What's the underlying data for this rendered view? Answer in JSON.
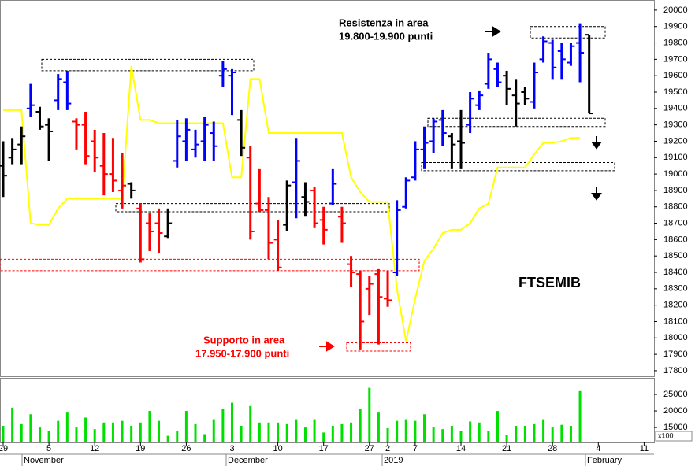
{
  "chart_data": [
    {
      "type": "ohlc",
      "title": "FTSEMIB",
      "annotations": {
        "resistance_1": "Resistenza in area",
        "resistance_2": "19.800-19.900 punti",
        "support_1": "Supporto in area",
        "support_2": "17.950-17.900 punti"
      },
      "categories": [
        "29",
        null,
        null,
        null,
        null,
        "5",
        null,
        null,
        null,
        null,
        "12",
        null,
        null,
        null,
        null,
        "19",
        null,
        null,
        null,
        null,
        "26",
        null,
        null,
        null,
        null,
        "3",
        null,
        null,
        null,
        null,
        "10",
        null,
        null,
        null,
        null,
        "17",
        null,
        null,
        null,
        null,
        "27",
        null,
        "2",
        null,
        null,
        "7",
        null,
        null,
        null,
        null,
        "14",
        null,
        null,
        null,
        null,
        "21",
        null,
        null,
        null,
        null,
        "28",
        null,
        null,
        null,
        null,
        "4",
        null,
        null,
        null,
        null,
        "11",
        null
      ],
      "month_labels": [
        "November",
        "December",
        "2019",
        "February"
      ],
      "high": [
        19200,
        19220,
        19290,
        19550,
        19410,
        19340,
        19610,
        19630,
        19340,
        19380,
        19270,
        19250,
        19220,
        19130,
        18950,
        18820,
        18760,
        18790,
        18790,
        19330,
        19340,
        19270,
        19350,
        19320,
        19690,
        19640,
        19390,
        19170,
        19030,
        18860,
        18720,
        18960,
        19220,
        18950,
        18920,
        18800,
        19030,
        18800,
        18500,
        18410,
        18380,
        18420,
        18410,
        18840,
        18980,
        19200,
        19290,
        19340,
        19390,
        19250,
        19390,
        19500,
        19510,
        19740,
        19680,
        19630,
        19580,
        19530,
        19680,
        19840,
        19820,
        19800,
        19800,
        19920,
        19850,
        null,
        null,
        null,
        null,
        null,
        null,
        null
      ],
      "low": [
        18860,
        19060,
        19060,
        19350,
        19270,
        19080,
        19390,
        19390,
        19150,
        19060,
        19010,
        18870,
        18890,
        18790,
        18850,
        18460,
        18530,
        18520,
        18610,
        19040,
        19080,
        19100,
        19080,
        19080,
        19530,
        19360,
        19110,
        18600,
        18770,
        18480,
        18410,
        18650,
        18730,
        18740,
        18670,
        18570,
        18810,
        18580,
        18310,
        17930,
        18140,
        17960,
        18190,
        18380,
        18790,
        18960,
        19030,
        19130,
        19170,
        19030,
        19030,
        19250,
        19390,
        19520,
        19530,
        19420,
        19290,
        19420,
        19400,
        19680,
        19580,
        19580,
        19660,
        19560,
        19370,
        null,
        null,
        null,
        null,
        null,
        null,
        null
      ],
      "open": [
        19050,
        19100,
        19180,
        19400,
        19380,
        19300,
        19450,
        19560,
        19320,
        19300,
        19200,
        19050,
        19000,
        18900,
        18940,
        18790,
        18700,
        18700,
        18620,
        19080,
        19200,
        19150,
        19200,
        19250,
        19600,
        19600,
        19330,
        19100,
        18820,
        18780,
        18600,
        18690,
        18950,
        18860,
        18900,
        18720,
        18820,
        18740,
        18450,
        18390,
        18300,
        18390,
        18240,
        18400,
        18800,
        18980,
        19150,
        19200,
        19330,
        19230,
        19200,
        19300,
        19420,
        19550,
        19640,
        19600,
        19480,
        19500,
        19440,
        19700,
        19800,
        19750,
        19680,
        19800,
        19850,
        null,
        null,
        null,
        null,
        null,
        null,
        null
      ],
      "close": [
        18990,
        19150,
        19230,
        19420,
        19290,
        19260,
        19580,
        19430,
        19300,
        19110,
        19100,
        19000,
        18960,
        18930,
        18900,
        18480,
        18650,
        18640,
        18700,
        19230,
        19270,
        19180,
        19300,
        19170,
        19640,
        19620,
        19160,
        18650,
        18780,
        18580,
        18430,
        18930,
        19080,
        18830,
        18700,
        18660,
        18940,
        18700,
        18400,
        18100,
        18330,
        18250,
        18230,
        18780,
        18960,
        19150,
        19190,
        19320,
        19250,
        19180,
        19190,
        19460,
        19480,
        19700,
        19560,
        19520,
        19430,
        19460,
        19620,
        19810,
        19650,
        19700,
        19780,
        19740,
        19370,
        null,
        null,
        null,
        null,
        null,
        null,
        null
      ],
      "colors": [
        "#000000",
        "#000000",
        "#000000",
        "#0000ff",
        "#000000",
        "#000000",
        "#0000ff",
        "#0000ff",
        "#ff0000",
        "#ff0000",
        "#ff0000",
        "#ff0000",
        "#ff0000",
        "#ff0000",
        "#000000",
        "#ff0000",
        "#ff0000",
        "#ff0000",
        "#000000",
        "#0000ff",
        "#0000ff",
        "#0000ff",
        "#0000ff",
        "#0000ff",
        "#0000ff",
        "#0000ff",
        "#000000",
        "#ff0000",
        "#ff0000",
        "#ff0000",
        "#ff0000",
        "#000000",
        "#0000ff",
        "#000000",
        "#ff0000",
        "#ff0000",
        "#0000ff",
        "#ff0000",
        "#ff0000",
        "#ff0000",
        "#ff0000",
        "#ff0000",
        "#ff0000",
        "#0000ff",
        "#0000ff",
        "#0000ff",
        "#0000ff",
        "#0000ff",
        "#0000ff",
        "#000000",
        "#000000",
        "#0000ff",
        "#0000ff",
        "#0000ff",
        "#0000ff",
        "#000000",
        "#000000",
        "#000000",
        "#0000ff",
        "#0000ff",
        "#0000ff",
        "#0000ff",
        "#0000ff",
        "#0000ff",
        "#000000",
        null,
        null,
        null,
        null,
        null,
        null,
        null
      ],
      "line": {
        "color": "#ffff00",
        "values": [
          19390,
          19390,
          19390,
          18700,
          18690,
          18690,
          18790,
          18850,
          18850,
          18850,
          18850,
          18850,
          18850,
          18850,
          19660,
          19330,
          19330,
          19310,
          19310,
          19310,
          19310,
          19310,
          19310,
          19310,
          19310,
          18980,
          18980,
          19580,
          19580,
          19250,
          19250,
          19250,
          19250,
          19250,
          19250,
          19250,
          19250,
          19250,
          18980,
          18890,
          18830,
          18830,
          18830,
          18300,
          17980,
          18240,
          18470,
          18545,
          18640,
          18660,
          18660,
          18700,
          18790,
          18820,
          19040,
          19040,
          19040,
          19040,
          19120,
          19190,
          19190,
          19200,
          19220,
          19220,
          null,
          null,
          null,
          null,
          null,
          null,
          null,
          null
        ]
      },
      "zones": [
        {
          "low": 19830,
          "high": 19900,
          "color": "#000000"
        },
        {
          "low": 19630,
          "high": 19700,
          "color": "#000000"
        },
        {
          "low": 18770,
          "high": 18820,
          "color": "#000000"
        },
        {
          "low": 18410,
          "high": 18480,
          "color": "#ff0000"
        },
        {
          "low": 19290,
          "high": 19340,
          "color": "#000000"
        },
        {
          "low": 19020,
          "high": 19070,
          "color": "#000000"
        },
        {
          "low": 17920,
          "high": 17970,
          "color": "#ff0000"
        }
      ],
      "ylim": [
        17766,
        20062
      ],
      "yticks": [
        17800,
        17900,
        18000,
        18100,
        18200,
        18300,
        18400,
        18500,
        18600,
        18700,
        18800,
        18900,
        19000,
        19100,
        19200,
        19300,
        19400,
        19500,
        19600,
        19700,
        19800,
        19900,
        20000
      ]
    },
    {
      "type": "bar",
      "unit_note": "x100",
      "color": "#00e000",
      "values": [
        15500,
        21000,
        16000,
        19000,
        15000,
        14000,
        17000,
        19500,
        15000,
        18000,
        14500,
        16500,
        16500,
        17000,
        15500,
        16500,
        20000,
        17000,
        12500,
        14000,
        20000,
        16000,
        13000,
        17500,
        20500,
        22500,
        15500,
        21500,
        16500,
        16500,
        16500,
        16000,
        17500,
        15000,
        17500,
        13500,
        15500,
        16000,
        16500,
        20500,
        27000,
        19500,
        14800,
        17000,
        17500,
        17000,
        19000,
        15000,
        14500,
        15500,
        14000,
        16800,
        16500,
        14000,
        20000,
        12800,
        15500,
        15500,
        16000,
        17500,
        15000,
        15800,
        15500,
        26000,
        null,
        null,
        null,
        null,
        null,
        null,
        null,
        null
      ],
      "ylim": [
        10500,
        30000
      ],
      "yticks": [
        15000,
        20000,
        25000
      ]
    }
  ]
}
